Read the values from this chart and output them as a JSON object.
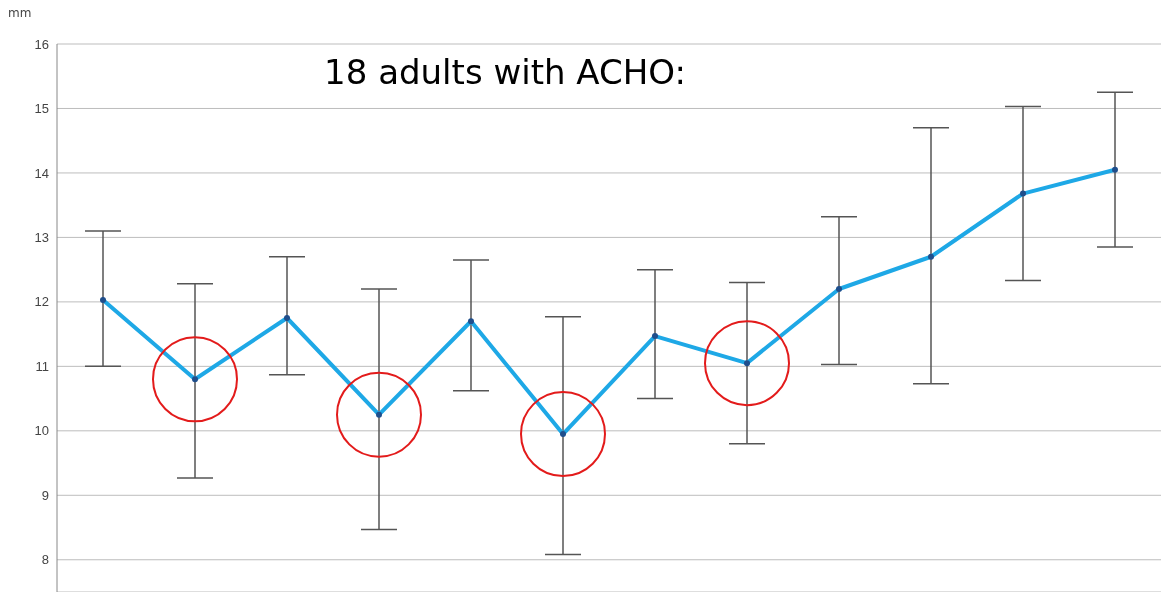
{
  "chart_data": {
    "type": "line",
    "title": "18 adults with ACHO:",
    "ylabel": "mm",
    "categories": [
      null,
      null,
      null,
      null,
      null,
      null,
      null,
      null,
      null,
      null,
      null,
      null
    ],
    "series": [
      {
        "color": "#1ea8e6",
        "values": [
          12.03,
          10.8,
          11.75,
          10.25,
          11.7,
          9.95,
          11.47,
          11.05,
          12.2,
          12.7,
          13.68,
          14.05
        ],
        "errors": [
          [
            11.0,
            13.1
          ],
          [
            9.27,
            12.28
          ],
          [
            10.87,
            12.7
          ],
          [
            8.47,
            12.2
          ],
          [
            10.62,
            12.65
          ],
          [
            8.08,
            11.77
          ],
          [
            10.5,
            12.5
          ],
          [
            9.8,
            12.3
          ],
          [
            11.03,
            13.32
          ],
          [
            10.73,
            14.7
          ],
          [
            12.33,
            15.03
          ],
          [
            12.85,
            15.25
          ]
        ]
      }
    ],
    "ylim": [
      7.5,
      16
    ],
    "yticks": [
      8,
      9,
      10,
      11,
      12,
      13,
      14,
      15,
      16
    ],
    "grid": "y",
    "marker": "circle",
    "line_style": "solid"
  }
}
